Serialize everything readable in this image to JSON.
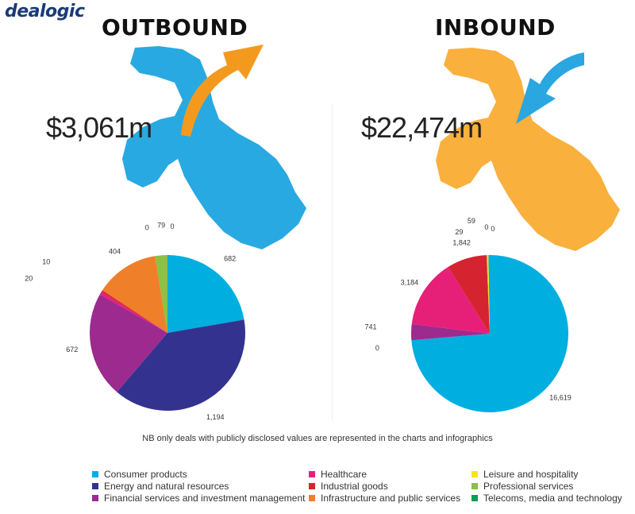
{
  "brand": {
    "logo_text": "dealogic"
  },
  "panels": {
    "outbound": {
      "title": "OUTBOUND",
      "amount": "$3,061m"
    },
    "inbound": {
      "title": "INBOUND",
      "amount": "$22,474m"
    }
  },
  "colors": {
    "map_outbound": "#29a9e1",
    "map_inbound": "#f9b03c",
    "arrow_outbound": "#f39a1e",
    "arrow_inbound": "#2aa6e0"
  },
  "chart_data": [
    {
      "type": "pie",
      "name": "OUTBOUND",
      "slices": [
        {
          "label": "Consumer products",
          "value": 682,
          "value_label": "682",
          "color": "#00aee0"
        },
        {
          "label": "Energy and natural resources",
          "value": 1194,
          "value_label": "1,194",
          "color": "#33338f"
        },
        {
          "label": "Financial services and investment management",
          "value": 672,
          "value_label": "672",
          "color": "#9c2a8f"
        },
        {
          "label": "Healthcare",
          "value": 20,
          "value_label": "20",
          "color": "#e61f78"
        },
        {
          "label": "Industrial goods",
          "value": 10,
          "value_label": "10",
          "color": "#d5232f"
        },
        {
          "label": "Infrastructure and public services",
          "value": 404,
          "value_label": "404",
          "color": "#f07f2a"
        },
        {
          "label": "Leisure and hospitality",
          "value": 0,
          "value_label": "0",
          "color": "#f6e51e"
        },
        {
          "label": "Professional services",
          "value": 79,
          "value_label": "79",
          "color": "#8dc043"
        },
        {
          "label": "Telecoms, media and technology",
          "value": 0,
          "value_label": "0",
          "color": "#0f9b53"
        }
      ]
    },
    {
      "type": "pie",
      "name": "INBOUND",
      "slices": [
        {
          "label": "Consumer products",
          "value": 16619,
          "value_label": "16,619",
          "color": "#00aee0"
        },
        {
          "label": "Energy and natural resources",
          "value": 0,
          "value_label": "0",
          "color": "#33338f"
        },
        {
          "label": "Financial services and investment management",
          "value": 741,
          "value_label": "741",
          "color": "#9c2a8f"
        },
        {
          "label": "Healthcare",
          "value": 3184,
          "value_label": "3,184",
          "color": "#e61f78"
        },
        {
          "label": "Industrial goods",
          "value": 1842,
          "value_label": "1,842",
          "color": "#d5232f"
        },
        {
          "label": "Infrastructure and public services",
          "value": 29,
          "value_label": "29",
          "color": "#f07f2a"
        },
        {
          "label": "Leisure and hospitality",
          "value": 59,
          "value_label": "59",
          "color": "#f6e51e"
        },
        {
          "label": "Professional services",
          "value": 0,
          "value_label": "0",
          "color": "#8dc043"
        },
        {
          "label": "Telecoms, media and technology",
          "value": 0,
          "value_label": "0",
          "color": "#0f9b53"
        }
      ]
    }
  ],
  "note": "NB only deals with publicly disclosed values are represented in the charts and infographics",
  "legend": [
    {
      "label": "Consumer products",
      "color": "#00aee0"
    },
    {
      "label": "Energy and natural resources",
      "color": "#33338f"
    },
    {
      "label": "Financial services and investment management",
      "color": "#9c2a8f"
    },
    {
      "label": "Healthcare",
      "color": "#e61f78"
    },
    {
      "label": "Industrial goods",
      "color": "#d5232f"
    },
    {
      "label": "Infrastructure and public services",
      "color": "#f07f2a"
    },
    {
      "label": "Leisure and hospitality",
      "color": "#f6e51e"
    },
    {
      "label": "Professional services",
      "color": "#8dc043"
    },
    {
      "label": "Telecoms, media and technology",
      "color": "#0f9b53"
    }
  ]
}
